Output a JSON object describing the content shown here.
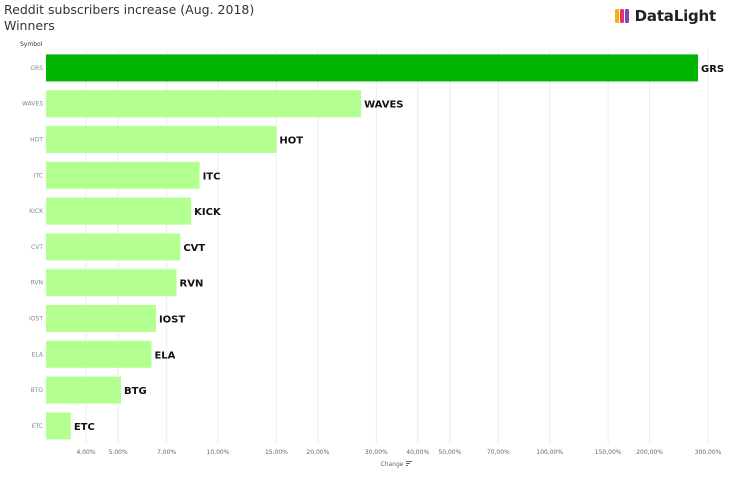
{
  "header": {
    "title": "Reddit subscribers increase (Aug. 2018)",
    "subtitle": "Winners",
    "logo_text": "DataLight"
  },
  "chart_data": {
    "type": "bar",
    "orientation": "horizontal",
    "y_header": "Symbol",
    "xlabel": "Change",
    "x_scale": "log",
    "categories": [
      "GRS",
      "WAVES",
      "HOT",
      "ITC",
      "KICK",
      "CVT",
      "RVN",
      "IOST",
      "ELA",
      "BTG",
      "ETC"
    ],
    "values": [
      280,
      27,
      15,
      8.8,
      8.3,
      7.7,
      7.5,
      6.5,
      6.3,
      5.1,
      3.6
    ],
    "units": "%",
    "highlight_category": "GRS",
    "x_ticks": [
      4,
      5,
      7,
      10,
      15,
      20,
      30,
      40,
      50,
      70,
      100,
      150,
      200,
      300
    ],
    "x_tick_labels": [
      "4,00%",
      "5,00%",
      "7,00%",
      "10,00%",
      "15,00%",
      "20,00%",
      "30,00%",
      "40,00%",
      "50,00%",
      "70,00%",
      "100,00%",
      "150,00%",
      "200,00%",
      "300,00%"
    ],
    "grid": true,
    "colors": {
      "highlight": "#00b400",
      "bar": "#b3ff8f",
      "grid": "#ececec"
    }
  }
}
